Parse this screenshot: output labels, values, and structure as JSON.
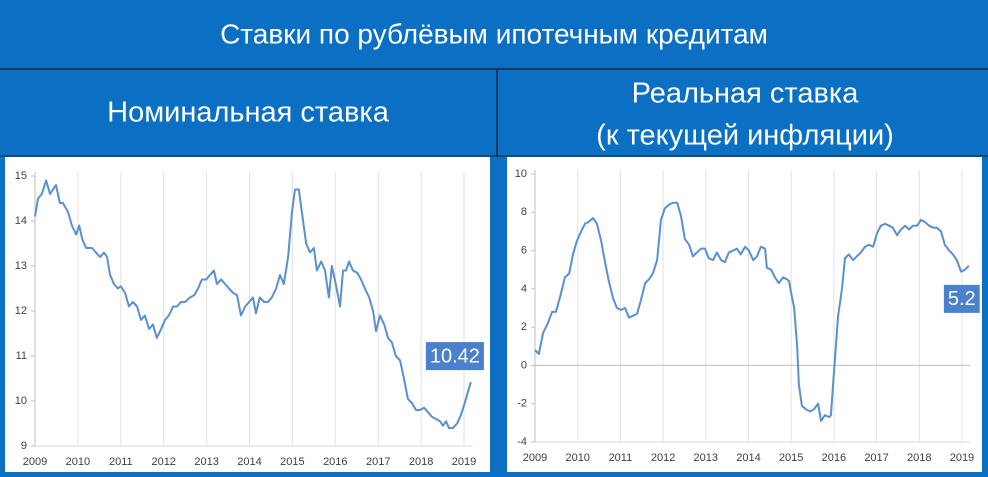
{
  "title": "Ставки по рублёвым ипотечным кредитам",
  "chart_data": [
    {
      "type": "line",
      "title": "Номинальная ставка",
      "color": "#5a8fd0",
      "label_color": "#4a80cc",
      "xlim": [
        2009,
        2019.2
      ],
      "xticks": [
        2009,
        2010,
        2011,
        2012,
        2013,
        2014,
        2015,
        2016,
        2017,
        2018,
        2019
      ],
      "ylim": [
        9,
        15
      ],
      "yticks": [
        9,
        10,
        11,
        12,
        13,
        14,
        15
      ],
      "grid": "x",
      "x": [
        2009.0,
        2009.07,
        2009.16,
        2009.26,
        2009.35,
        2009.49,
        2009.58,
        2009.65,
        2009.77,
        2009.86,
        2009.96,
        2010.03,
        2010.1,
        2010.19,
        2010.33,
        2010.42,
        2010.52,
        2010.61,
        2010.68,
        2010.75,
        2010.84,
        2010.93,
        2011.0,
        2011.1,
        2011.19,
        2011.28,
        2011.38,
        2011.47,
        2011.56,
        2011.66,
        2011.75,
        2011.84,
        2011.94,
        2012.03,
        2012.12,
        2012.22,
        2012.31,
        2012.4,
        2012.5,
        2012.61,
        2012.71,
        2012.8,
        2012.89,
        2012.99,
        2013.08,
        2013.17,
        2013.24,
        2013.34,
        2013.43,
        2013.52,
        2013.62,
        2013.71,
        2013.8,
        2013.9,
        2013.99,
        2014.08,
        2014.15,
        2014.24,
        2014.34,
        2014.43,
        2014.52,
        2014.62,
        2014.71,
        2014.8,
        2014.9,
        2014.99,
        2015.06,
        2015.15,
        2015.22,
        2015.32,
        2015.41,
        2015.5,
        2015.57,
        2015.67,
        2015.76,
        2015.85,
        2015.92,
        2016.01,
        2016.11,
        2016.18,
        2016.25,
        2016.32,
        2016.41,
        2016.51,
        2016.6,
        2016.69,
        2016.79,
        2016.88,
        2016.95,
        2017.04,
        2017.14,
        2017.23,
        2017.32,
        2017.41,
        2017.51,
        2017.6,
        2017.69,
        2017.79,
        2017.88,
        2017.97,
        2018.07,
        2018.16,
        2018.25,
        2018.35,
        2018.44,
        2018.51,
        2018.58,
        2018.65,
        2018.74,
        2018.84,
        2018.93,
        2019.0,
        2019.09,
        2019.16
      ],
      "values": [
        14.1,
        14.5,
        14.6,
        14.9,
        14.6,
        14.8,
        14.4,
        14.4,
        14.2,
        13.9,
        13.7,
        13.9,
        13.6,
        13.4,
        13.4,
        13.3,
        13.2,
        13.3,
        13.2,
        12.8,
        12.6,
        12.5,
        12.55,
        12.4,
        12.1,
        12.2,
        12.1,
        11.8,
        11.9,
        11.6,
        11.7,
        11.4,
        11.6,
        11.8,
        11.9,
        12.1,
        12.1,
        12.2,
        12.2,
        12.3,
        12.35,
        12.5,
        12.7,
        12.7,
        12.8,
        12.9,
        12.6,
        12.7,
        12.6,
        12.5,
        12.4,
        12.35,
        11.9,
        12.1,
        12.2,
        12.3,
        11.95,
        12.3,
        12.2,
        12.2,
        12.3,
        12.5,
        12.8,
        12.6,
        13.2,
        14.2,
        14.7,
        14.7,
        14.2,
        13.5,
        13.3,
        13.4,
        12.9,
        13.1,
        12.9,
        12.3,
        13.0,
        12.6,
        12.1,
        12.9,
        12.9,
        13.1,
        12.9,
        12.85,
        12.7,
        12.5,
        12.3,
        12.0,
        11.55,
        11.9,
        11.7,
        11.4,
        11.3,
        11.0,
        10.9,
        10.5,
        10.05,
        9.95,
        9.8,
        9.8,
        9.85,
        9.75,
        9.65,
        9.6,
        9.55,
        9.45,
        9.55,
        9.4,
        9.4,
        9.5,
        9.7,
        9.9,
        10.2,
        10.42
      ]
    },
    {
      "type": "line",
      "title": "Реальная ставка",
      "subtitle": "(к текущей инфляции)",
      "color": "#5a8fd0",
      "label_color": "#4a80cc",
      "xlim": [
        2009,
        2019.2
      ],
      "xticks": [
        2009,
        2010,
        2011,
        2012,
        2013,
        2014,
        2015,
        2016,
        2017,
        2018,
        2019
      ],
      "ylim": [
        -4,
        10
      ],
      "yticks": [
        -4,
        -2,
        0,
        2,
        4,
        6,
        8,
        10
      ],
      "grid": "x",
      "zero_line": true,
      "x": [
        2009.0,
        2009.09,
        2009.19,
        2009.3,
        2009.4,
        2009.49,
        2009.59,
        2009.7,
        2009.8,
        2009.89,
        2009.98,
        2010.08,
        2010.17,
        2010.26,
        2010.36,
        2010.45,
        2010.55,
        2010.64,
        2010.73,
        2010.83,
        2010.92,
        2011.01,
        2011.11,
        2011.2,
        2011.3,
        2011.39,
        2011.48,
        2011.58,
        2011.67,
        2011.76,
        2011.86,
        2011.95,
        2012.04,
        2012.14,
        2012.23,
        2012.33,
        2012.42,
        2012.51,
        2012.61,
        2012.7,
        2012.79,
        2012.89,
        2012.98,
        2013.07,
        2013.17,
        2013.26,
        2013.36,
        2013.45,
        2013.54,
        2013.64,
        2013.73,
        2013.82,
        2013.92,
        2014.01,
        2014.11,
        2014.2,
        2014.29,
        2014.39,
        2014.43,
        2014.53,
        2014.62,
        2014.71,
        2014.81,
        2014.9,
        2014.95,
        2014.99,
        2015.07,
        2015.14,
        2015.18,
        2015.25,
        2015.35,
        2015.44,
        2015.53,
        2015.63,
        2015.7,
        2015.79,
        2015.89,
        2015.93,
        2016.03,
        2016.1,
        2016.19,
        2016.26,
        2016.35,
        2016.45,
        2016.54,
        2016.63,
        2016.73,
        2016.82,
        2016.92,
        2017.01,
        2017.1,
        2017.2,
        2017.29,
        2017.38,
        2017.48,
        2017.57,
        2017.67,
        2017.76,
        2017.85,
        2017.95,
        2018.04,
        2018.13,
        2018.23,
        2018.32,
        2018.41,
        2018.51,
        2018.6,
        2018.7,
        2018.79,
        2018.88,
        2018.98,
        2019.07,
        2019.16
      ],
      "values": [
        0.8,
        0.6,
        1.7,
        2.2,
        2.8,
        2.8,
        3.6,
        4.6,
        4.8,
        5.8,
        6.5,
        7.0,
        7.4,
        7.5,
        7.7,
        7.4,
        6.5,
        5.4,
        4.4,
        3.5,
        3.0,
        2.9,
        3.0,
        2.5,
        2.6,
        2.7,
        3.4,
        4.3,
        4.5,
        4.8,
        5.5,
        7.6,
        8.2,
        8.4,
        8.5,
        8.5,
        7.8,
        6.6,
        6.3,
        5.7,
        5.9,
        6.1,
        6.1,
        5.6,
        5.5,
        5.9,
        5.5,
        5.4,
        5.9,
        6.0,
        6.1,
        5.8,
        6.2,
        6.0,
        5.5,
        5.7,
        6.2,
        6.1,
        5.1,
        5.0,
        4.6,
        4.3,
        4.6,
        4.5,
        4.4,
        3.9,
        3.0,
        1.0,
        -1.0,
        -2.1,
        -2.3,
        -2.4,
        -2.3,
        -2.0,
        -2.9,
        -2.6,
        -2.7,
        -2.6,
        0.5,
        2.6,
        4.0,
        5.6,
        5.8,
        5.5,
        5.7,
        5.9,
        6.2,
        6.3,
        6.2,
        6.9,
        7.3,
        7.4,
        7.3,
        7.2,
        6.8,
        7.1,
        7.3,
        7.1,
        7.3,
        7.3,
        7.6,
        7.5,
        7.3,
        7.2,
        7.2,
        7.0,
        6.3,
        6.0,
        5.8,
        5.5,
        4.9,
        5.0,
        5.2
      ]
    }
  ]
}
